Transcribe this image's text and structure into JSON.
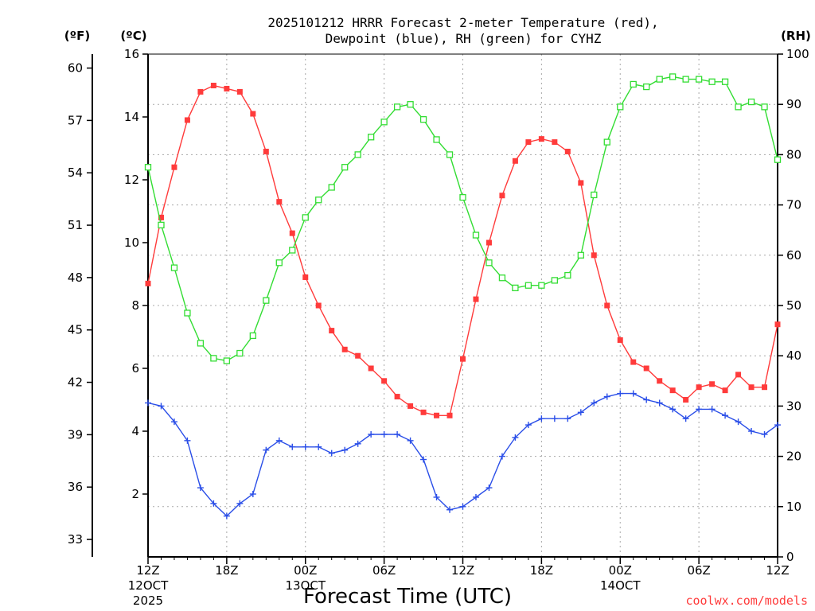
{
  "chart_data": {
    "type": "line",
    "title_line1": "2025101212 HRRR Forecast 2-meter Temperature (red),",
    "title_line2": "Dewpoint (blue), RH (green) for CYHZ",
    "xlabel": "Forecast Time (UTC)",
    "credit": "coolwx.com/models",
    "colors": {
      "temperature": "#ff3b3b",
      "dewpoint": "#2a4ee8",
      "rh": "#33dd33"
    },
    "left_outer_axis": {
      "unit": "(ºF)",
      "ticks": [
        "33",
        "36",
        "39",
        "42",
        "45",
        "48",
        "51",
        "54",
        "57",
        "60"
      ],
      "tick_values": [
        33,
        36,
        39,
        42,
        45,
        48,
        51,
        54,
        57,
        60
      ]
    },
    "left_inner_axis": {
      "unit": "(ºC)",
      "range": [
        0,
        16
      ],
      "ticks": [
        "2",
        "4",
        "6",
        "8",
        "10",
        "12",
        "14",
        "16"
      ],
      "tick_values": [
        2,
        4,
        6,
        8,
        10,
        12,
        14,
        16
      ]
    },
    "right_axis": {
      "unit": "(RH)",
      "range": [
        0,
        100
      ],
      "ticks": [
        "0",
        "10",
        "20",
        "30",
        "40",
        "50",
        "60",
        "70",
        "80",
        "90",
        "100"
      ],
      "tick_values": [
        0,
        10,
        20,
        30,
        40,
        50,
        60,
        70,
        80,
        90,
        100
      ]
    },
    "x_range_hours": [
      0,
      48
    ],
    "x_ticks": [
      {
        "hour": 0,
        "label": "12Z",
        "date": "12OCT",
        "year": "2025"
      },
      {
        "hour": 6,
        "label": "18Z"
      },
      {
        "hour": 12,
        "label": "00Z",
        "date": "13OCT"
      },
      {
        "hour": 18,
        "label": "06Z"
      },
      {
        "hour": 24,
        "label": "12Z"
      },
      {
        "hour": 30,
        "label": "18Z"
      },
      {
        "hour": 36,
        "label": "00Z",
        "date": "14OCT"
      },
      {
        "hour": 42,
        "label": "06Z"
      },
      {
        "hour": 48,
        "label": "12Z"
      }
    ],
    "series": [
      {
        "name": "Temperature",
        "unit": "C",
        "values": [
          8.7,
          10.8,
          12.4,
          13.9,
          14.8,
          15.0,
          14.9,
          14.8,
          14.1,
          12.9,
          11.3,
          10.3,
          8.9,
          8.0,
          7.2,
          6.6,
          6.4,
          6.0,
          5.6,
          5.1,
          4.8,
          4.6,
          4.5,
          4.5,
          6.3,
          8.2,
          10.0,
          11.5,
          12.6,
          13.2,
          13.3,
          13.2,
          12.9,
          11.9,
          9.6,
          8.0,
          6.9,
          6.2,
          6.0,
          5.6,
          5.3,
          5.0,
          5.4,
          5.5,
          5.3,
          5.8,
          5.4,
          5.4,
          7.4
        ]
      },
      {
        "name": "Dewpoint",
        "unit": "C",
        "values": [
          4.9,
          4.8,
          4.3,
          3.7,
          2.2,
          1.7,
          1.3,
          1.7,
          2.0,
          3.4,
          3.7,
          3.5,
          3.5,
          3.5,
          3.3,
          3.4,
          3.6,
          3.9,
          3.9,
          3.9,
          3.7,
          3.1,
          1.9,
          1.5,
          1.6,
          1.9,
          2.2,
          3.2,
          3.8,
          4.2,
          4.4,
          4.4,
          4.4,
          4.6,
          4.9,
          5.1,
          5.2,
          5.2,
          5.0,
          4.9,
          4.7,
          4.4,
          4.7,
          4.7,
          4.5,
          4.3,
          4.0,
          3.9,
          4.2
        ]
      },
      {
        "name": "RH",
        "unit": "%",
        "values": [
          77.5,
          66.0,
          57.5,
          48.5,
          42.5,
          39.5,
          39.0,
          40.5,
          44.0,
          51.0,
          58.5,
          61.0,
          67.5,
          71.0,
          73.5,
          77.5,
          80.0,
          83.5,
          86.5,
          89.5,
          90.0,
          87.0,
          83.0,
          80.0,
          71.5,
          64.0,
          58.5,
          55.5,
          53.5,
          54.0,
          54.0,
          55.0,
          56.0,
          60.0,
          72.0,
          82.5,
          89.5,
          94.0,
          93.5,
          95.0,
          95.5,
          95.0,
          95.0,
          94.5,
          94.5,
          89.5,
          90.5,
          89.5,
          79.0
        ]
      }
    ]
  }
}
